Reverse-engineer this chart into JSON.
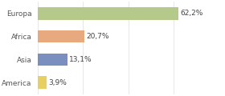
{
  "categories": [
    "Europa",
    "Africa",
    "Asia",
    "America"
  ],
  "values": [
    62.2,
    20.7,
    13.1,
    3.9
  ],
  "labels": [
    "62,2%",
    "20,7%",
    "13,1%",
    "3,9%"
  ],
  "bar_colors": [
    "#b5c98a",
    "#e8a97e",
    "#7a8fc0",
    "#e8d060"
  ],
  "background_color": "#ffffff",
  "xlim": [
    0,
    82
  ],
  "label_fontsize": 6.5,
  "tick_fontsize": 6.5,
  "bar_height": 0.55
}
